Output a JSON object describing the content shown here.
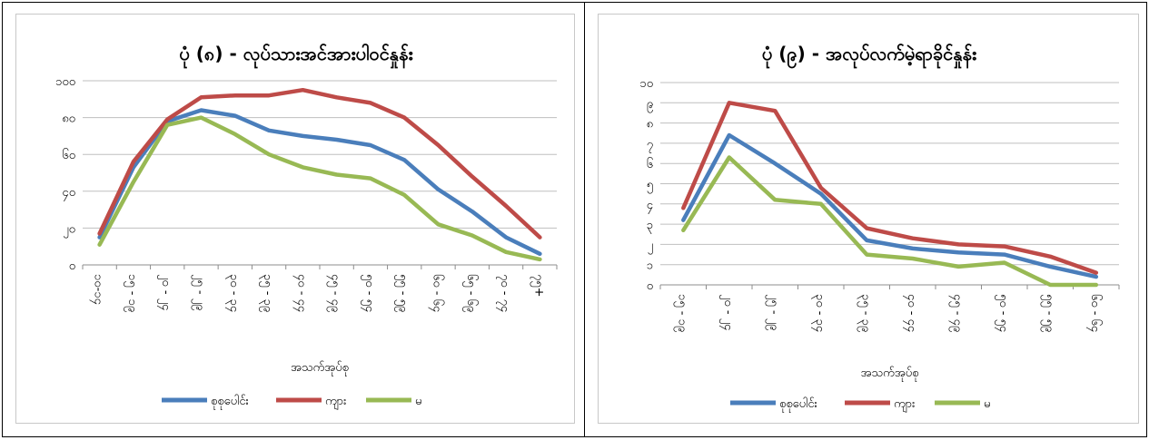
{
  "chart_data": [
    {
      "type": "line",
      "title": "ပုံ (၈) - လုပ်သားအင်အားပါဝင်နှုန်း",
      "xlabel": "အသက်အုပ်စု",
      "ylabel": "",
      "ylim": [
        0,
        100
      ],
      "yticks": [
        0,
        20,
        40,
        60,
        80,
        100
      ],
      "ytick_labels": [
        "၀",
        "၂၀",
        "၄၀",
        "၆၀",
        "၈၀",
        "၁၀၀"
      ],
      "grid": true,
      "legend_position": "bottom",
      "categories": [
        "၁၀-၁၄",
        "၁၅ - ၁၉",
        "၂၀ - ၂၄",
        "၂၅ - ၂၉",
        "၃၀ - ၃၄",
        "၃၅ - ၃၉",
        "၄၀ - ၄၄",
        "၄၅ - ၄၉",
        "၅၀ - ၅၄",
        "၅၅ - ၅၉",
        "၆၀ - ၆၄",
        "၆၅ - ၆၉",
        "၇၀ - ၇၄",
        "၇၅+"
      ],
      "series": [
        {
          "name": "စုစုပေါင်း",
          "color": "#4a7ebb",
          "values": [
            15,
            53,
            78,
            84,
            81,
            73,
            70,
            68,
            65,
            57,
            41,
            29,
            15,
            6
          ]
        },
        {
          "name": "ကျား",
          "color": "#be4b48",
          "values": [
            17,
            56,
            79,
            91,
            92,
            92,
            95,
            91,
            88,
            80,
            65,
            48,
            32,
            15
          ]
        },
        {
          "name": "မ",
          "color": "#98b954",
          "values": [
            11,
            45,
            76,
            80,
            71,
            60,
            53,
            49,
            47,
            38,
            22,
            16,
            7,
            3
          ]
        }
      ]
    },
    {
      "type": "line",
      "title": "ပုံ (၉) - အလုပ်လက်မဲ့ရာခိုင်နှုန်း",
      "xlabel": "အသက်အုပ်စု",
      "ylabel": "",
      "ylim": [
        0,
        10
      ],
      "yticks": [
        0,
        1,
        2,
        3,
        4,
        5,
        6,
        7,
        8,
        9,
        10
      ],
      "ytick_labels": [
        "၀",
        "၁",
        "၂",
        "၃",
        "၄",
        "၅",
        "၆",
        "၇",
        "၈",
        "၉",
        "၁၀"
      ],
      "grid": true,
      "legend_position": "bottom",
      "categories": [
        "၁၅ - ၁၉",
        "၂၀ - ၂၄",
        "၂၅ - ၂၉",
        "၃၀ - ၃၄",
        "၃၅ - ၃၉",
        "၄၀ - ၄၄",
        "၄၅ - ၄၉",
        "၅၀ - ၅၄",
        "၅၅ - ၅၉",
        "၆၀ - ၆၄"
      ],
      "series": [
        {
          "name": "စုစုပေါင်း",
          "color": "#4a7ebb",
          "values": [
            3.2,
            7.4,
            6.0,
            4.5,
            2.2,
            1.8,
            1.6,
            1.5,
            0.9,
            0.4
          ]
        },
        {
          "name": "ကျား",
          "color": "#be4b48",
          "values": [
            3.8,
            9.0,
            8.6,
            4.8,
            2.8,
            2.3,
            2.0,
            1.9,
            1.4,
            0.6
          ]
        },
        {
          "name": "မ",
          "color": "#98b954",
          "values": [
            2.7,
            6.3,
            4.2,
            4.0,
            1.5,
            1.3,
            0.9,
            1.1,
            0.0,
            0.0
          ]
        }
      ]
    }
  ]
}
